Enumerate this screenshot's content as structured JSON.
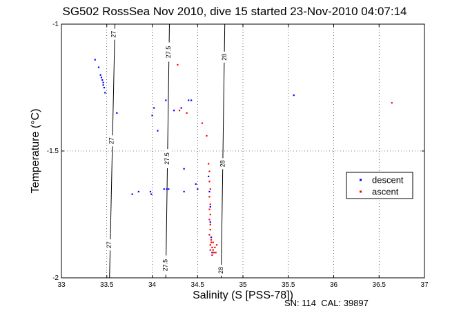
{
  "chart_data": {
    "type": "scatter",
    "title": "SG502 RossSea Nov 2010, dive 15 started 23-Nov-2010 04:07:14",
    "xlabel": "Salinity (S [PSS-78])",
    "ylabel": "Temperature (°C)",
    "xlim": [
      33,
      37
    ],
    "ylim": [
      -2,
      -1
    ],
    "x_ticks": [
      "33",
      "33.5",
      "34",
      "34.5",
      "35",
      "35.5",
      "36",
      "36.5",
      "37"
    ],
    "y_ticks": [
      "-2",
      "-1.5",
      "-1"
    ],
    "grid": "dotted",
    "legend_position": "right",
    "footer": "SN: 114  CAL: 39897",
    "colors": {
      "descent": "#0000ff",
      "ascent": "#ff0000",
      "contour": "#000000"
    },
    "contours": [
      {
        "label": "27",
        "points": [
          [
            33.59,
            -1.0
          ],
          [
            33.56,
            -1.5
          ],
          [
            33.53,
            -2.0
          ]
        ],
        "label_positions": [
          [
            33.58,
            -1.04
          ],
          [
            33.555,
            -1.46
          ],
          [
            33.53,
            -1.87
          ]
        ]
      },
      {
        "label": "27.5",
        "points": [
          [
            34.19,
            -1.0
          ],
          [
            34.17,
            -1.5
          ],
          [
            34.15,
            -2.0
          ]
        ],
        "label_positions": [
          [
            34.185,
            -1.11
          ],
          [
            34.17,
            -1.53
          ],
          [
            34.15,
            -1.95
          ]
        ]
      },
      {
        "label": "28",
        "points": [
          [
            34.8,
            -1.0
          ],
          [
            34.78,
            -1.5
          ],
          [
            34.76,
            -2.0
          ]
        ],
        "label_positions": [
          [
            34.8,
            -1.13
          ],
          [
            34.78,
            -1.55
          ],
          [
            34.76,
            -1.97
          ]
        ]
      }
    ],
    "series": [
      {
        "name": "descent",
        "points": [
          [
            33.37,
            -1.14
          ],
          [
            33.41,
            -1.17
          ],
          [
            33.43,
            -1.2
          ],
          [
            33.44,
            -1.21
          ],
          [
            33.45,
            -1.22
          ],
          [
            33.46,
            -1.23
          ],
          [
            33.46,
            -1.24
          ],
          [
            33.47,
            -1.25
          ],
          [
            33.48,
            -1.27
          ],
          [
            33.61,
            -1.35
          ],
          [
            33.78,
            -1.67
          ],
          [
            33.85,
            -1.66
          ],
          [
            33.98,
            -1.66
          ],
          [
            33.99,
            -1.67
          ],
          [
            34.0,
            -1.36
          ],
          [
            34.02,
            -1.33
          ],
          [
            34.06,
            -1.42
          ],
          [
            34.13,
            -1.65
          ],
          [
            34.16,
            -1.65
          ],
          [
            34.18,
            -1.65
          ],
          [
            34.15,
            -1.3
          ],
          [
            34.24,
            -1.34
          ],
          [
            34.32,
            -1.33
          ],
          [
            34.35,
            -1.57
          ],
          [
            34.35,
            -1.66
          ],
          [
            34.4,
            -1.3
          ],
          [
            34.43,
            -1.3
          ],
          [
            34.48,
            -1.63
          ],
          [
            34.5,
            -1.65
          ],
          [
            34.62,
            -1.6
          ],
          [
            34.63,
            -1.66
          ],
          [
            34.64,
            -1.72
          ],
          [
            34.64,
            -1.78
          ],
          [
            34.65,
            -1.84
          ],
          [
            34.66,
            -1.9
          ],
          [
            35.56,
            -1.28
          ]
        ]
      },
      {
        "name": "ascent",
        "points": [
          [
            34.28,
            -1.16
          ],
          [
            34.3,
            -1.34
          ],
          [
            34.38,
            -1.35
          ],
          [
            34.55,
            -1.39
          ],
          [
            34.6,
            -1.44
          ],
          [
            34.62,
            -1.55
          ],
          [
            34.63,
            -1.58
          ],
          [
            34.63,
            -1.62
          ],
          [
            34.64,
            -1.65
          ],
          [
            34.63,
            -1.68
          ],
          [
            34.64,
            -1.71
          ],
          [
            34.63,
            -1.73
          ],
          [
            34.64,
            -1.75
          ],
          [
            34.63,
            -1.77
          ],
          [
            34.64,
            -1.79
          ],
          [
            34.64,
            -1.81
          ],
          [
            34.63,
            -1.83
          ],
          [
            34.65,
            -1.85
          ],
          [
            34.64,
            -1.87
          ],
          [
            34.66,
            -1.88
          ],
          [
            34.67,
            -1.89
          ],
          [
            34.68,
            -1.9
          ],
          [
            34.66,
            -1.91
          ],
          [
            34.7,
            -1.9
          ],
          [
            34.69,
            -1.88
          ],
          [
            34.71,
            -1.87
          ],
          [
            34.65,
            -1.86
          ],
          [
            34.67,
            -1.86
          ],
          [
            34.64,
            -1.89
          ],
          [
            36.64,
            -1.31
          ]
        ]
      }
    ]
  }
}
